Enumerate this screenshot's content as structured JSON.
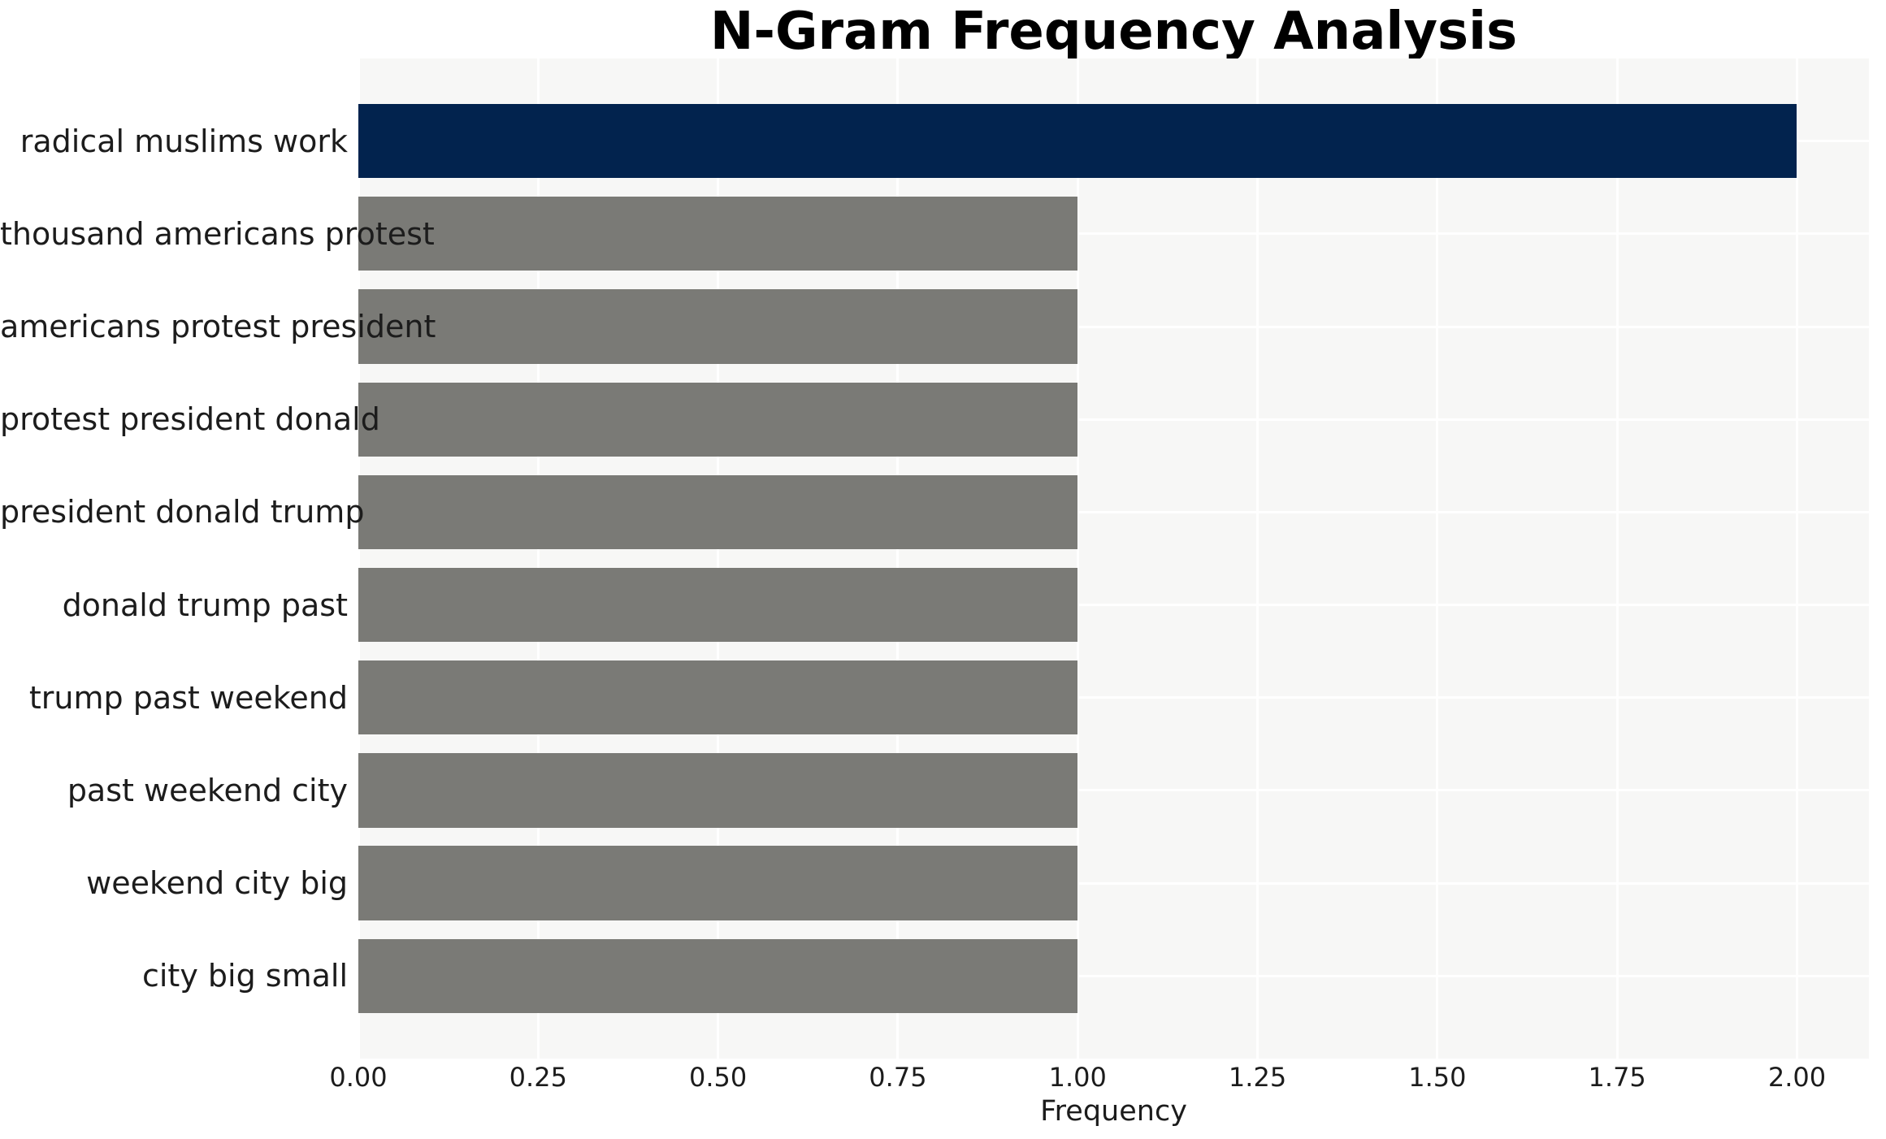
{
  "chart_data": {
    "type": "bar",
    "orientation": "horizontal",
    "title": "N-Gram Frequency Analysis",
    "xlabel": "Frequency",
    "ylabel": "",
    "categories": [
      "radical muslims work",
      "thousand americans protest",
      "americans protest president",
      "protest president donald",
      "president donald trump",
      "donald trump past",
      "trump past weekend",
      "past weekend city",
      "weekend city big",
      "city big small"
    ],
    "values": [
      2,
      1,
      1,
      1,
      1,
      1,
      1,
      1,
      1,
      1
    ],
    "xlim": [
      0,
      2.1
    ],
    "xticks": [
      0.0,
      0.25,
      0.5,
      0.75,
      1.0,
      1.25,
      1.5,
      1.75,
      2.0
    ],
    "xtick_labels": [
      "0.00",
      "0.25",
      "0.50",
      "0.75",
      "1.00",
      "1.25",
      "1.50",
      "1.75",
      "2.00"
    ],
    "grid": true,
    "legend": false,
    "colors": {
      "bar_highlight": "#02234e",
      "bar_default": "#7a7a76",
      "plot_background": "#f7f7f6",
      "gridline": "#ffffff",
      "text": "#1c1c1c",
      "title_text": "#000000"
    }
  }
}
